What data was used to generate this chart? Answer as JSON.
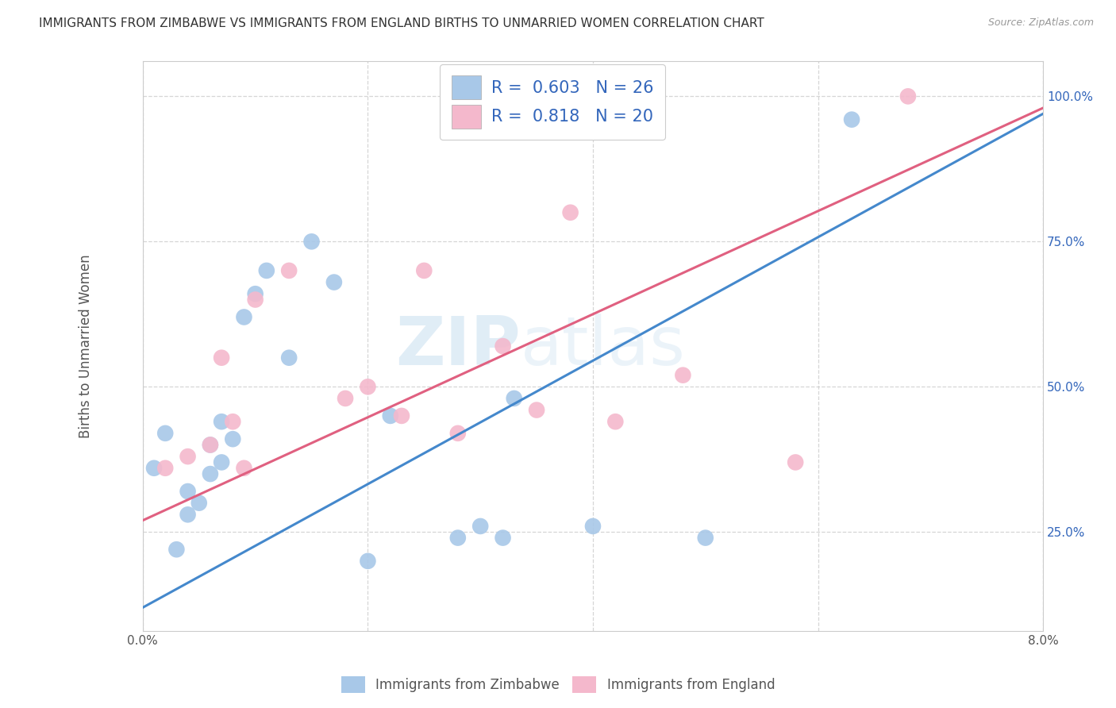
{
  "title": "IMMIGRANTS FROM ZIMBABWE VS IMMIGRANTS FROM ENGLAND BIRTHS TO UNMARRIED WOMEN CORRELATION CHART",
  "source": "Source: ZipAtlas.com",
  "ylabel": "Births to Unmarried Women",
  "xlim": [
    0.0,
    0.08
  ],
  "ylim": [
    0.08,
    1.06
  ],
  "xticks": [
    0.0,
    0.02,
    0.04,
    0.06,
    0.08
  ],
  "xtick_labels": [
    "0.0%",
    "",
    "",
    "",
    "8.0%"
  ],
  "yticks": [
    0.25,
    0.5,
    0.75,
    1.0
  ],
  "ytick_labels": [
    "25.0%",
    "50.0%",
    "75.0%",
    "100.0%"
  ],
  "watermark_zip": "ZIP",
  "watermark_atlas": "atlas",
  "legend_line1": "R =  0.603   N = 26",
  "legend_line2": "R =  0.818   N = 20",
  "series1_label": "Immigrants from Zimbabwe",
  "series2_label": "Immigrants from England",
  "color1": "#a8c8e8",
  "color2": "#f4b8cc",
  "line_color1": "#4488cc",
  "line_color2": "#e06080",
  "background_color": "#ffffff",
  "grid_color": "#cccccc",
  "title_color": "#333333",
  "axis_label_color": "#555555",
  "legend_text_color": "#3366bb",
  "ytick_color": "#3366bb",
  "zimbabwe_x": [
    0.001,
    0.002,
    0.003,
    0.004,
    0.004,
    0.005,
    0.006,
    0.006,
    0.007,
    0.007,
    0.008,
    0.009,
    0.01,
    0.011,
    0.013,
    0.015,
    0.017,
    0.02,
    0.022,
    0.028,
    0.03,
    0.032,
    0.033,
    0.04,
    0.05,
    0.063
  ],
  "zimbabwe_y": [
    0.36,
    0.42,
    0.22,
    0.28,
    0.32,
    0.3,
    0.35,
    0.4,
    0.37,
    0.44,
    0.41,
    0.62,
    0.66,
    0.7,
    0.55,
    0.75,
    0.68,
    0.2,
    0.45,
    0.24,
    0.26,
    0.24,
    0.48,
    0.26,
    0.24,
    0.96
  ],
  "england_x": [
    0.002,
    0.004,
    0.006,
    0.007,
    0.008,
    0.009,
    0.01,
    0.013,
    0.018,
    0.02,
    0.023,
    0.025,
    0.028,
    0.032,
    0.035,
    0.038,
    0.042,
    0.048,
    0.058,
    0.068
  ],
  "england_y": [
    0.36,
    0.38,
    0.4,
    0.55,
    0.44,
    0.36,
    0.65,
    0.7,
    0.48,
    0.5,
    0.45,
    0.7,
    0.42,
    0.57,
    0.46,
    0.8,
    0.44,
    0.52,
    0.37,
    1.0
  ],
  "zimbabwe_line_x": [
    0.0,
    0.08
  ],
  "zimbabwe_line_y": [
    0.12,
    0.97
  ],
  "england_line_x": [
    0.0,
    0.08
  ],
  "england_line_y": [
    0.27,
    0.98
  ],
  "marker_size": 220
}
